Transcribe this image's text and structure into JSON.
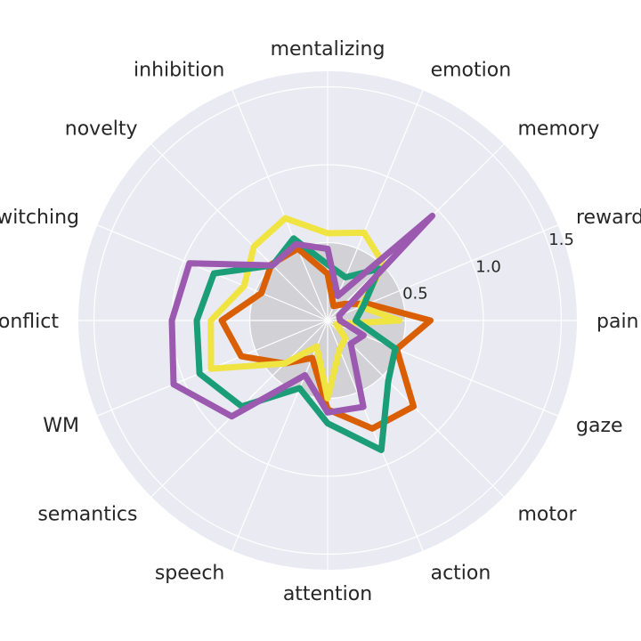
{
  "chart_data": {
    "type": "radar",
    "title": "",
    "categories": [
      "pain",
      "reward",
      "memory",
      "emotion",
      "mentalizing",
      "inhibition",
      "novelty",
      "switching",
      "conflict",
      "WM",
      "semantics",
      "speech",
      "attention",
      "action",
      "motor",
      "gaze"
    ],
    "radial_ticks": [
      0.5,
      1.0,
      1.5
    ],
    "radial_tick_labels": [
      "0.5",
      "1.0",
      "1.5"
    ],
    "rmax": 1.6,
    "baseline_circle_r": 0.5,
    "grid": true,
    "series": [
      {
        "color": "#d95f02",
        "values": [
          0.66,
          0.28,
          0.15,
          0.1,
          0.3,
          0.5,
          0.51,
          0.46,
          0.68,
          0.6,
          0.39,
          0.26,
          0.57,
          0.75,
          0.78,
          0.48
        ]
      },
      {
        "color": "#f0e442",
        "values": [
          0.46,
          0.23,
          0.51,
          0.61,
          0.56,
          0.71,
          0.67,
          0.58,
          0.75,
          0.81,
          0.39,
          0.18,
          0.5,
          0.2,
          0.16,
          0.06
        ]
      },
      {
        "color": "#1b9e77",
        "values": [
          0.18,
          0.25,
          0.47,
          0.3,
          0.36,
          0.57,
          0.5,
          0.79,
          0.84,
          0.89,
          0.78,
          0.47,
          0.66,
          0.9,
          0.55,
          0.47
        ]
      },
      {
        "color": "#9c59b0",
        "values": [
          0.08,
          0.08,
          0.95,
          0.17,
          0.46,
          0.53,
          0.5,
          0.96,
          1.0,
          1.07,
          0.87,
          0.38,
          0.59,
          0.6,
          0.21,
          0.25
        ]
      }
    ]
  }
}
